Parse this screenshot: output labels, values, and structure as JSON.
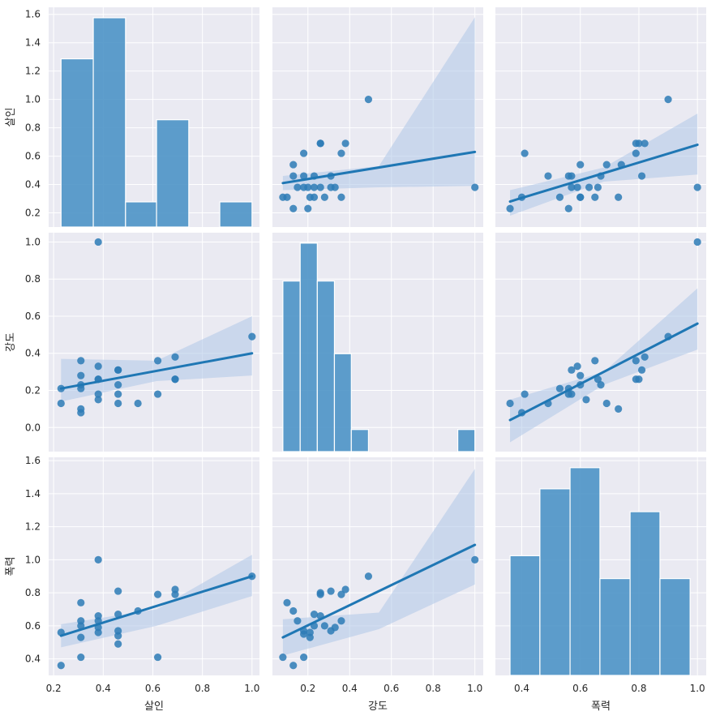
{
  "chart_data": {
    "type": "scatter",
    "figure": "pairplot",
    "variables": [
      "살인",
      "강도",
      "폭력"
    ],
    "colors": {
      "panel_bg": "#eaeaf2",
      "grid": "#ffffff",
      "bar": "#4c93c6",
      "point": "#2d7bb6",
      "line": "#1f77b4",
      "band": "#aec7e8"
    },
    "grid": true,
    "axes": {
      "x": [
        {
          "label": "살인",
          "range": [
            0.18,
            1.03
          ],
          "ticks": [
            "0.2",
            "0.4",
            "0.6",
            "0.8",
            "1.0"
          ]
        },
        {
          "label": "강도",
          "range": [
            0.03,
            1.04
          ],
          "ticks": [
            "0.2",
            "0.4",
            "0.6",
            "0.8",
            "1.0"
          ]
        },
        {
          "label": "폭력",
          "range": [
            0.31,
            1.03
          ],
          "ticks": [
            "0.4",
            "0.6",
            "0.8",
            "1.0"
          ]
        }
      ],
      "y": [
        {
          "label": "살인",
          "range": [
            0.1,
            1.65
          ],
          "ticks": [
            "0.2",
            "0.4",
            "0.6",
            "0.8",
            "1.0",
            "1.2",
            "1.4",
            "1.6"
          ]
        },
        {
          "label": "강도",
          "range": [
            -0.13,
            1.05
          ],
          "ticks": [
            "0.0",
            "0.2",
            "0.4",
            "0.6",
            "0.8",
            "1.0"
          ]
        },
        {
          "label": "폭력",
          "range": [
            0.3,
            1.62
          ],
          "ticks": [
            "0.4",
            "0.6",
            "0.8",
            "1.0",
            "1.2",
            "1.4",
            "1.6"
          ]
        }
      ]
    },
    "histograms": [
      {
        "variable": "살인",
        "bins": [
          [
            0.23,
            0.36
          ],
          [
            0.36,
            0.49
          ],
          [
            0.49,
            0.615
          ],
          [
            0.615,
            0.745
          ],
          [
            0.745,
            0.87
          ],
          [
            0.87,
            1.0
          ]
        ],
        "heights": [
          1.27,
          1.58,
          0.19,
          0.81,
          0,
          0.19
        ]
      },
      {
        "variable": "강도",
        "bins": [
          [
            0.08,
            0.163
          ],
          [
            0.163,
            0.245
          ],
          [
            0.245,
            0.327
          ],
          [
            0.327,
            0.408
          ],
          [
            0.408,
            0.49
          ],
          [
            0.49,
            0.57
          ],
          [
            0.57,
            0.652
          ],
          [
            0.652,
            0.734
          ],
          [
            0.734,
            0.816
          ],
          [
            0.816,
            0.9
          ],
          [
            0.918,
            1.0
          ]
        ],
        "heights": [
          0.54,
          0.66,
          0.54,
          0.31,
          0.07,
          0,
          0,
          0,
          0,
          0,
          0.07
        ]
      },
      {
        "variable": "폭력",
        "bins": [
          [
            0.36,
            0.462
          ],
          [
            0.462,
            0.565
          ],
          [
            0.565,
            0.667
          ],
          [
            0.667,
            0.77
          ],
          [
            0.77,
            0.872
          ],
          [
            0.872,
            0.975
          ]
        ],
        "heights": [
          0.68,
          1.06,
          1.18,
          0.55,
          0.93,
          0.55
        ]
      }
    ],
    "pairs": [
      {
        "x_var": "강도",
        "y_var": "살인",
        "x": [
          0.08,
          0.1,
          0.13,
          0.13,
          0.13,
          0.15,
          0.18,
          0.18,
          0.18,
          0.2,
          0.2,
          0.21,
          0.23,
          0.23,
          0.23,
          0.26,
          0.26,
          0.26,
          0.28,
          0.31,
          0.31,
          0.33,
          0.36,
          0.36,
          0.38,
          0.49,
          1.0
        ],
        "y": [
          0.31,
          0.31,
          0.23,
          0.46,
          0.54,
          0.38,
          0.38,
          0.46,
          0.62,
          0.23,
          0.38,
          0.31,
          0.31,
          0.38,
          0.46,
          0.38,
          0.69,
          0.69,
          0.31,
          0.38,
          0.46,
          0.38,
          0.31,
          0.62,
          0.69,
          1.0,
          0.38
        ],
        "fit": [
          [
            0.08,
            0.41
          ],
          [
            1.0,
            0.63
          ]
        ],
        "band_low": [
          0.36,
          0.38,
          0.39
        ],
        "band_high": [
          0.46,
          0.53,
          1.58
        ]
      },
      {
        "x_var": "폭력",
        "y_var": "살인",
        "x": [
          0.36,
          0.4,
          0.41,
          0.49,
          0.53,
          0.56,
          0.56,
          0.57,
          0.57,
          0.59,
          0.6,
          0.6,
          0.6,
          0.63,
          0.65,
          0.66,
          0.67,
          0.69,
          0.73,
          0.74,
          0.79,
          0.79,
          0.8,
          0.81,
          0.82,
          0.9,
          1.0
        ],
        "y": [
          0.23,
          0.31,
          0.62,
          0.46,
          0.31,
          0.46,
          0.23,
          0.38,
          0.46,
          0.38,
          0.31,
          0.31,
          0.54,
          0.38,
          0.31,
          0.38,
          0.46,
          0.54,
          0.31,
          0.54,
          0.62,
          0.69,
          0.69,
          0.46,
          0.69,
          1.0,
          0.38
        ],
        "fit": [
          [
            0.36,
            0.28
          ],
          [
            1.0,
            0.68
          ]
        ],
        "band_low": [
          0.18,
          0.42,
          0.47
        ],
        "band_high": [
          0.36,
          0.52,
          0.9
        ]
      },
      {
        "x_var": "살인",
        "y_var": "강도",
        "x": [
          0.23,
          0.23,
          0.31,
          0.31,
          0.31,
          0.31,
          0.31,
          0.31,
          0.38,
          0.38,
          0.38,
          0.38,
          0.38,
          0.38,
          0.46,
          0.46,
          0.46,
          0.46,
          0.46,
          0.54,
          0.62,
          0.62,
          0.69,
          0.69,
          0.69,
          1.0
        ],
        "y": [
          0.13,
          0.21,
          0.08,
          0.1,
          0.21,
          0.23,
          0.28,
          0.36,
          0.15,
          0.18,
          0.26,
          0.26,
          0.33,
          1.0,
          0.13,
          0.18,
          0.23,
          0.31,
          0.31,
          0.13,
          0.18,
          0.36,
          0.26,
          0.26,
          0.38,
          0.49
        ],
        "fit": [
          [
            0.23,
            0.21
          ],
          [
            1.0,
            0.4
          ]
        ],
        "band_low": [
          0.14,
          0.25,
          0.28
        ],
        "band_high": [
          0.37,
          0.36,
          0.6
        ]
      },
      {
        "x_var": "폭력",
        "y_var": "강도",
        "x": [
          0.36,
          0.4,
          0.41,
          0.49,
          0.53,
          0.56,
          0.56,
          0.57,
          0.57,
          0.59,
          0.6,
          0.6,
          0.62,
          0.65,
          0.66,
          0.67,
          0.69,
          0.73,
          0.79,
          0.79,
          0.8,
          0.81,
          0.82,
          0.9,
          1.0
        ],
        "y": [
          0.13,
          0.08,
          0.18,
          0.13,
          0.21,
          0.18,
          0.21,
          0.18,
          0.31,
          0.33,
          0.28,
          0.23,
          0.15,
          0.36,
          0.26,
          0.23,
          0.13,
          0.1,
          0.26,
          0.36,
          0.26,
          0.31,
          0.38,
          0.49,
          1.0
        ],
        "fit": [
          [
            0.36,
            0.04
          ],
          [
            1.0,
            0.56
          ]
        ],
        "band_low": [
          -0.08,
          0.23,
          0.42
        ],
        "band_high": [
          0.15,
          0.3,
          0.75
        ]
      },
      {
        "x_var": "살인",
        "y_var": "폭력",
        "x": [
          0.23,
          0.23,
          0.31,
          0.31,
          0.31,
          0.31,
          0.31,
          0.38,
          0.38,
          0.38,
          0.38,
          0.38,
          0.46,
          0.46,
          0.46,
          0.46,
          0.46,
          0.54,
          0.62,
          0.62,
          0.69,
          0.69,
          1.0
        ],
        "y": [
          0.36,
          0.56,
          0.41,
          0.53,
          0.6,
          0.63,
          0.74,
          0.56,
          0.59,
          0.63,
          0.66,
          1.0,
          0.49,
          0.54,
          0.57,
          0.67,
          0.81,
          0.69,
          0.41,
          0.79,
          0.79,
          0.82,
          0.9
        ],
        "fit": [
          [
            0.23,
            0.54
          ],
          [
            1.0,
            0.9
          ]
        ],
        "band_low": [
          0.47,
          0.6,
          0.78
        ],
        "band_high": [
          0.61,
          0.7,
          1.03
        ]
      },
      {
        "x_var": "강도",
        "y_var": "폭력",
        "x": [
          0.08,
          0.1,
          0.13,
          0.13,
          0.15,
          0.18,
          0.18,
          0.18,
          0.21,
          0.21,
          0.23,
          0.23,
          0.26,
          0.26,
          0.26,
          0.28,
          0.31,
          0.31,
          0.33,
          0.36,
          0.36,
          0.38,
          0.49,
          1.0
        ],
        "y": [
          0.41,
          0.74,
          0.36,
          0.69,
          0.63,
          0.41,
          0.55,
          0.57,
          0.53,
          0.56,
          0.67,
          0.6,
          0.66,
          0.79,
          0.8,
          0.6,
          0.57,
          0.81,
          0.59,
          0.63,
          0.79,
          0.82,
          0.9,
          1.0
        ],
        "fit": [
          [
            0.08,
            0.53
          ],
          [
            1.0,
            1.09
          ]
        ],
        "band_low": [
          0.42,
          0.58,
          0.85
        ],
        "band_high": [
          0.64,
          0.68,
          1.55
        ]
      }
    ]
  }
}
